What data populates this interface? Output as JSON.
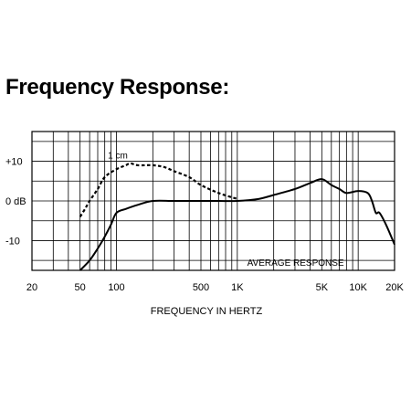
{
  "title": "Frequency Response:",
  "chart_data": {
    "type": "line",
    "xlabel": "FREQUENCY IN HERTZ",
    "ylabel": "",
    "x_scale": "log",
    "xlim": [
      20,
      20000
    ],
    "ylim": [
      -17.5,
      17.5
    ],
    "grid": true,
    "x_tick_labels": [
      {
        "value": 20,
        "label": "20"
      },
      {
        "value": 50,
        "label": "50"
      },
      {
        "value": 100,
        "label": "100"
      },
      {
        "value": 500,
        "label": "500"
      },
      {
        "value": 1000,
        "label": "1K"
      },
      {
        "value": 5000,
        "label": "5K"
      },
      {
        "value": 10000,
        "label": "10K"
      },
      {
        "value": 20000,
        "label": "20K"
      }
    ],
    "y_tick_labels": [
      {
        "value": 10,
        "label": "+10"
      },
      {
        "value": 0,
        "label": "0 dB"
      },
      {
        "value": -10,
        "label": "-10"
      }
    ],
    "annotations": [
      {
        "text": "1 cm",
        "x": 85,
        "y": 11.5
      },
      {
        "text": "AVERAGE RESPONSE",
        "x": 1050,
        "y": -15.5
      }
    ],
    "series": [
      {
        "name": "AVERAGE RESPONSE",
        "style": "solid",
        "color": "#000000",
        "x": [
          50,
          60,
          70,
          80,
          90,
          100,
          120,
          150,
          200,
          300,
          500,
          700,
          1000,
          1500,
          2000,
          3000,
          4000,
          5000,
          6000,
          7000,
          8000,
          10000,
          12000,
          13000,
          14000,
          15000,
          17000,
          20000
        ],
        "y": [
          -17.5,
          -15,
          -12,
          -9,
          -6,
          -3,
          -2,
          -1,
          0,
          0,
          0,
          0,
          0,
          0.5,
          1.5,
          3,
          4.5,
          5.5,
          4,
          3,
          2,
          2.5,
          2,
          0,
          -3,
          -3,
          -6,
          -11
        ]
      },
      {
        "name": "1 cm",
        "style": "dashed",
        "color": "#000000",
        "x": [
          50,
          55,
          60,
          70,
          80,
          100,
          120,
          130,
          150,
          200,
          250,
          300,
          400,
          500,
          700,
          1000
        ],
        "y": [
          -4,
          -2,
          0,
          3,
          6,
          8,
          9,
          9.5,
          9,
          9,
          8.5,
          7.5,
          6,
          4,
          2,
          0.5
        ]
      }
    ]
  }
}
